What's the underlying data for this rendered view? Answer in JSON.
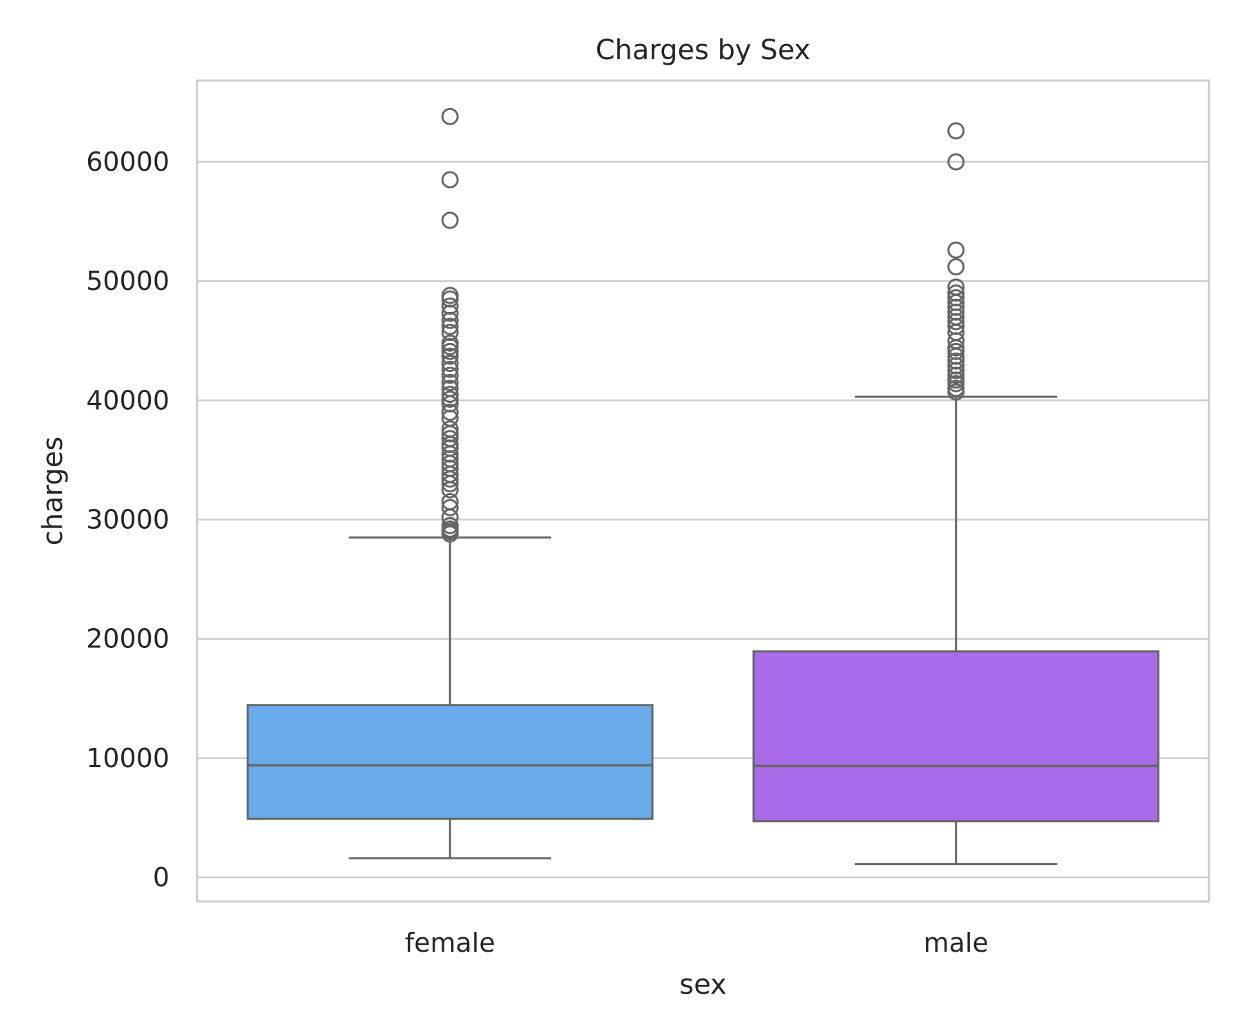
{
  "chart_data": {
    "type": "box",
    "title": "Charges by Sex",
    "xlabel": "sex",
    "ylabel": "charges",
    "ylim": [
      -2000,
      66000
    ],
    "yticks": [
      0,
      10000,
      20000,
      30000,
      40000,
      50000,
      60000
    ],
    "ytick_labels": [
      "0",
      "10000",
      "20000",
      "30000",
      "40000",
      "50000",
      "60000"
    ],
    "grid": true,
    "categories": [
      "female",
      "male"
    ],
    "boxes": [
      {
        "category": "female",
        "color": "#6aabea",
        "whisker_low": 1600,
        "q1": 4900,
        "median": 9400,
        "q3": 14450,
        "whisker_high": 28500,
        "outliers": [
          28800,
          29000,
          29200,
          29500,
          30200,
          31000,
          31500,
          32500,
          33000,
          33400,
          33800,
          34300,
          34700,
          35100,
          35500,
          36000,
          36300,
          36800,
          37200,
          37600,
          38500,
          39000,
          39700,
          40100,
          40500,
          41000,
          41500,
          42100,
          42600,
          43100,
          43700,
          44100,
          44500,
          44800,
          45700,
          46200,
          46700,
          47300,
          47900,
          48500,
          48800,
          55100,
          58500,
          63800
        ]
      },
      {
        "category": "male",
        "color": "#a96aea",
        "whisker_low": 1120,
        "q1": 4700,
        "median": 9350,
        "q3": 18950,
        "whisker_high": 40300,
        "outliers": [
          40700,
          41000,
          41400,
          41700,
          42100,
          42500,
          42900,
          43300,
          43700,
          44100,
          44400,
          45000,
          45700,
          46200,
          46600,
          47000,
          47400,
          47800,
          48200,
          48600,
          49000,
          49500,
          51200,
          52600,
          60000,
          62600
        ]
      }
    ]
  },
  "style": {
    "line_color": "#666666",
    "grid_color": "#cccccc",
    "frame_color": "#cccccc"
  }
}
